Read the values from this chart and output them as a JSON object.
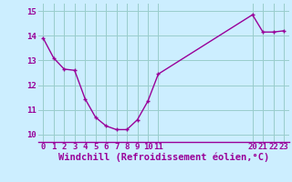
{
  "x": [
    0,
    1,
    2,
    3,
    4,
    5,
    6,
    7,
    8,
    9,
    10,
    11,
    20,
    21,
    22,
    23
  ],
  "y": [
    13.9,
    13.1,
    12.65,
    12.6,
    11.45,
    10.7,
    10.35,
    10.2,
    10.2,
    10.6,
    11.35,
    12.45,
    14.85,
    14.15,
    14.15,
    14.2
  ],
  "line_color": "#990099",
  "marker": "+",
  "bg_color": "#cceeff",
  "grid_color": "#99cccc",
  "xlabel": "Windchill (Refroidissement éolien,°C)",
  "xlabel_color": "#990099",
  "xlabel_fontsize": 7.5,
  "xticks": [
    0,
    1,
    2,
    3,
    4,
    5,
    6,
    7,
    8,
    9,
    10,
    11,
    20,
    21,
    22,
    23
  ],
  "yticks": [
    10,
    11,
    12,
    13,
    14,
    15
  ],
  "xlim": [
    -0.5,
    23.5
  ],
  "ylim": [
    9.7,
    15.3
  ],
  "tick_color": "#990099",
  "tick_fontsize": 6.5,
  "axis_color": "#990099",
  "linewidth": 1.0,
  "markersize": 3.5
}
